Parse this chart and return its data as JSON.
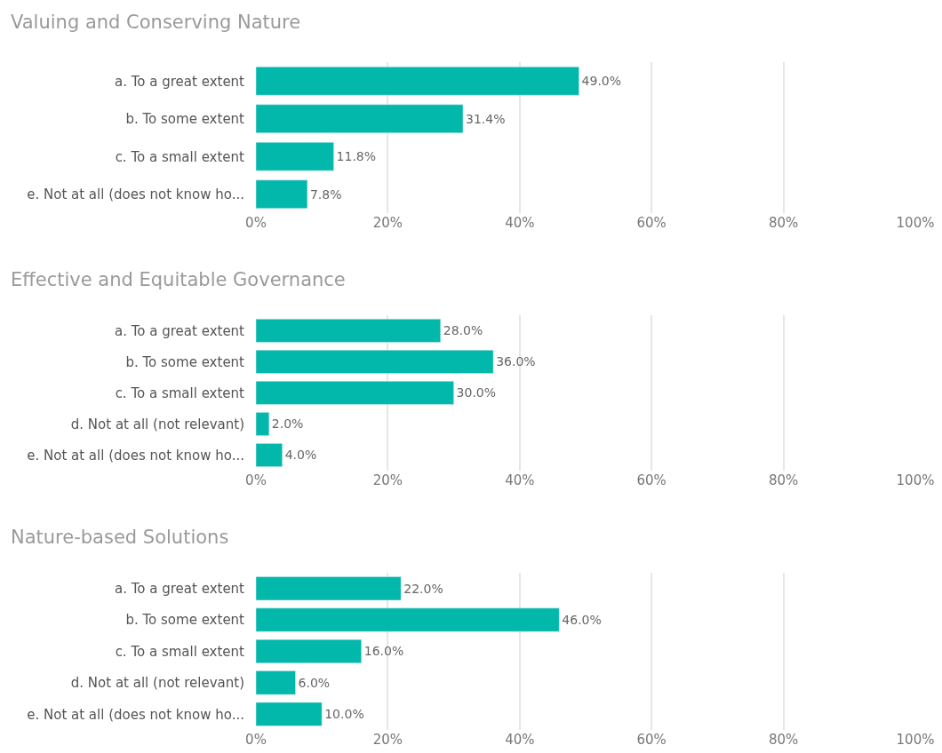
{
  "chart_data": [
    {
      "type": "bar",
      "orientation": "horizontal",
      "title": "Valuing and Conserving Nature",
      "categories": [
        "a. To a great extent",
        "b. To some extent",
        "c. To a small extent",
        "e. Not at all (does not know ho..."
      ],
      "values": [
        49.0,
        31.4,
        11.8,
        7.8
      ],
      "value_labels": [
        "49.0%",
        "31.4%",
        "11.8%",
        "7.8%"
      ],
      "color": "#01b8aa",
      "xlim": [
        0,
        100
      ],
      "xticks": [
        {
          "value": 0,
          "label": "0%"
        },
        {
          "value": 20,
          "label": "20%"
        },
        {
          "value": 40,
          "label": "40%"
        },
        {
          "value": 60,
          "label": "60%"
        },
        {
          "value": 80,
          "label": "80%"
        },
        {
          "value": 100,
          "label": "100%"
        }
      ],
      "grid": "x",
      "legend": false
    },
    {
      "type": "bar",
      "orientation": "horizontal",
      "title": "Effective and Equitable Governance",
      "categories": [
        "a. To a great extent",
        "b. To some extent",
        "c. To a small extent",
        "d. Not at all (not relevant)",
        "e. Not at all (does not know ho..."
      ],
      "values": [
        28.0,
        36.0,
        30.0,
        2.0,
        4.0
      ],
      "value_labels": [
        "28.0%",
        "36.0%",
        "30.0%",
        "2.0%",
        "4.0%"
      ],
      "color": "#01b8aa",
      "xlim": [
        0,
        100
      ],
      "xticks": [
        {
          "value": 0,
          "label": "0%"
        },
        {
          "value": 20,
          "label": "20%"
        },
        {
          "value": 40,
          "label": "40%"
        },
        {
          "value": 60,
          "label": "60%"
        },
        {
          "value": 80,
          "label": "80%"
        },
        {
          "value": 100,
          "label": "100%"
        }
      ],
      "grid": "x",
      "legend": false
    },
    {
      "type": "bar",
      "orientation": "horizontal",
      "title": "Nature-based Solutions",
      "categories": [
        "a. To a great extent",
        "b. To some extent",
        "c. To a small extent",
        "d. Not at all (not relevant)",
        "e. Not at all (does not know ho..."
      ],
      "values": [
        22.0,
        46.0,
        16.0,
        6.0,
        10.0
      ],
      "value_labels": [
        "22.0%",
        "46.0%",
        "16.0%",
        "6.0%",
        "10.0%"
      ],
      "color": "#01b8aa",
      "xlim": [
        0,
        100
      ],
      "xticks": [
        {
          "value": 0,
          "label": "0%"
        },
        {
          "value": 20,
          "label": "20%"
        },
        {
          "value": 40,
          "label": "40%"
        },
        {
          "value": 60,
          "label": "60%"
        },
        {
          "value": 80,
          "label": "80%"
        },
        {
          "value": 100,
          "label": "100%"
        }
      ],
      "grid": "x",
      "legend": false
    }
  ]
}
